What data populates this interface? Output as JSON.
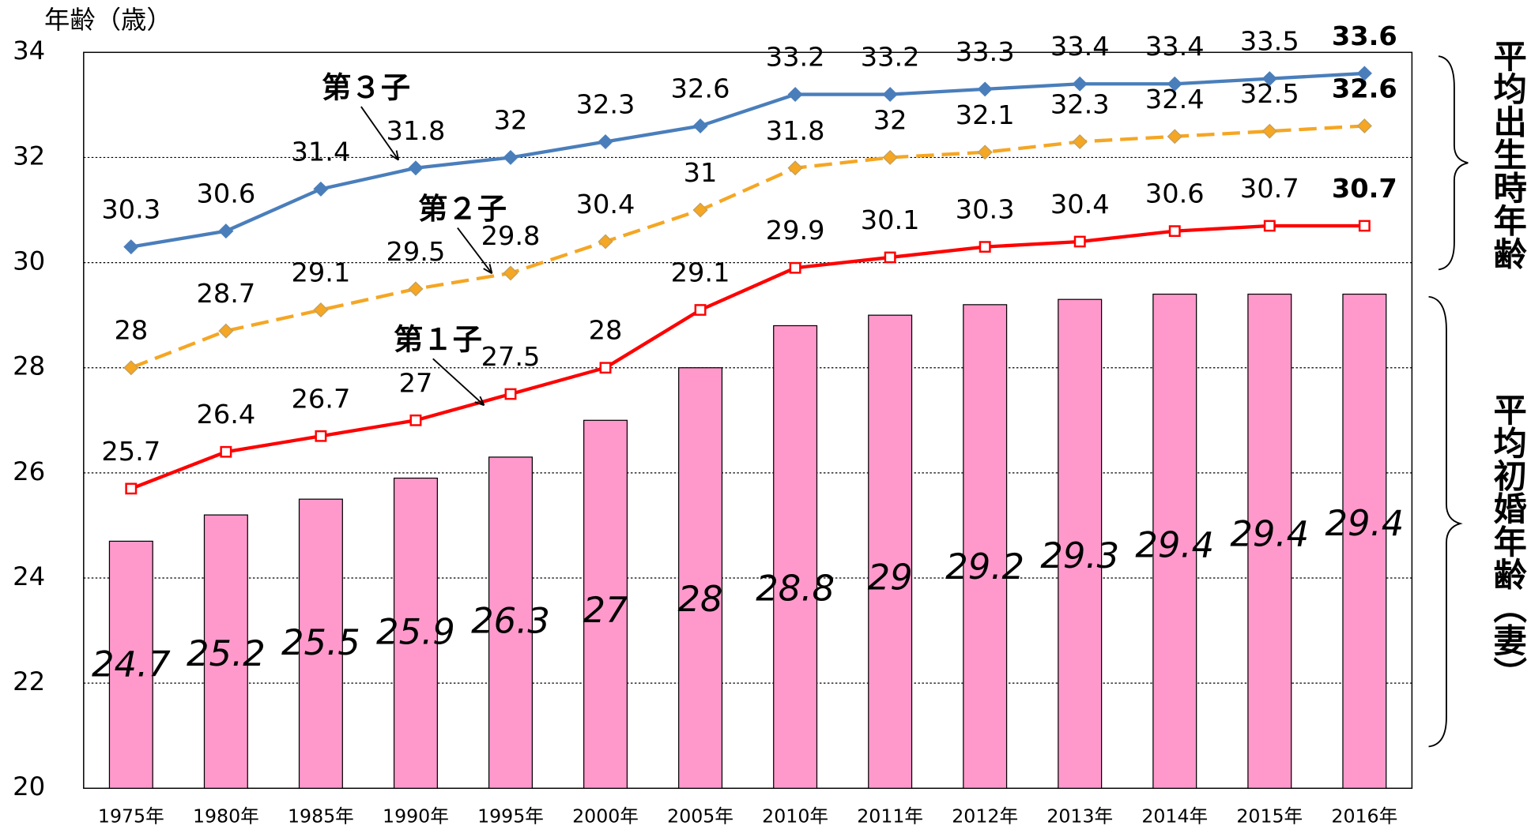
{
  "chart_data": {
    "type": "bar_line",
    "ylabel": "年齢（歳）",
    "categories": [
      "1975年",
      "1980年",
      "1985年",
      "1990年",
      "1995年",
      "2000年",
      "2005年",
      "2010年",
      "2011年",
      "2012年",
      "2013年",
      "2014年",
      "2015年",
      "2016年"
    ],
    "series": [
      {
        "name": "平均初婚年齢（妻）",
        "type": "bar",
        "color": "#ff99cc",
        "values": [
          24.7,
          25.2,
          25.5,
          25.9,
          26.3,
          27,
          28,
          28.8,
          29,
          29.2,
          29.3,
          29.4,
          29.4,
          29.4
        ]
      },
      {
        "name": "第１子",
        "type": "line",
        "color": "#ff0000",
        "marker": "square",
        "values": [
          25.7,
          26.4,
          26.7,
          27,
          27.5,
          28,
          29.1,
          29.9,
          30.1,
          30.3,
          30.4,
          30.6,
          30.7,
          30.7
        ]
      },
      {
        "name": "第２子",
        "type": "line",
        "color": "#f5a623",
        "marker": "diamond",
        "dashed": true,
        "values": [
          28,
          28.7,
          29.1,
          29.5,
          29.8,
          30.4,
          31,
          31.8,
          32,
          32.1,
          32.3,
          32.4,
          32.5,
          32.6
        ]
      },
      {
        "name": "第３子",
        "type": "line",
        "color": "#4a7ebb",
        "marker": "diamond",
        "values": [
          30.3,
          30.6,
          31.4,
          31.8,
          32,
          32.3,
          32.6,
          33.2,
          33.2,
          33.3,
          33.4,
          33.4,
          33.5,
          33.6
        ]
      }
    ],
    "bracket_label": "平均出生時年齢",
    "ylim": [
      20,
      34
    ],
    "yticks": [
      20,
      22,
      24,
      26,
      28,
      30,
      32,
      34
    ],
    "grid": true
  }
}
